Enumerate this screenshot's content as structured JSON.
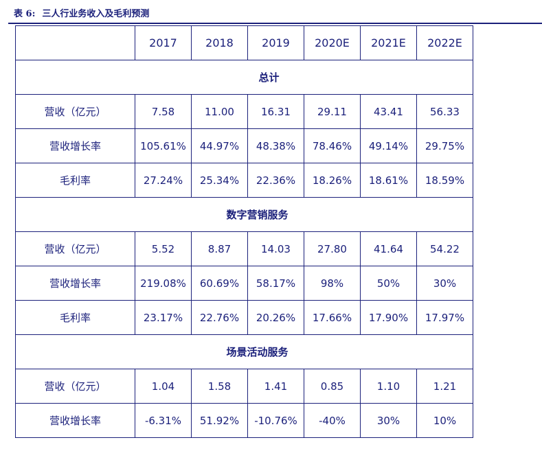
{
  "caption": {
    "label": "表 6:",
    "title": "三人行业务收入及毛利预测"
  },
  "table": {
    "corner": "",
    "years": [
      "2017",
      "2018",
      "2019",
      "2020E",
      "2021E",
      "2022E"
    ],
    "sections": [
      {
        "name": "总计",
        "rows": [
          {
            "label": "营收（亿元）",
            "values": [
              "7.58",
              "11.00",
              "16.31",
              "29.11",
              "43.41",
              "56.33"
            ]
          },
          {
            "label": "营收增长率",
            "values": [
              "105.61%",
              "44.97%",
              "48.38%",
              "78.46%",
              "49.14%",
              "29.75%"
            ]
          },
          {
            "label": "毛利率",
            "values": [
              "27.24%",
              "25.34%",
              "22.36%",
              "18.26%",
              "18.61%",
              "18.59%"
            ]
          }
        ]
      },
      {
        "name": "数字营销服务",
        "rows": [
          {
            "label": "营收（亿元）",
            "values": [
              "5.52",
              "8.87",
              "14.03",
              "27.80",
              "41.64",
              "54.22"
            ]
          },
          {
            "label": "营收增长率",
            "values": [
              "219.08%",
              "60.69%",
              "58.17%",
              "98%",
              "50%",
              "30%"
            ]
          },
          {
            "label": "毛利率",
            "values": [
              "23.17%",
              "22.76%",
              "20.26%",
              "17.66%",
              "17.90%",
              "17.97%"
            ]
          }
        ]
      },
      {
        "name": "场景活动服务",
        "rows": [
          {
            "label": "营收（亿元）",
            "values": [
              "1.04",
              "1.58",
              "1.41",
              "0.85",
              "1.10",
              "1.21"
            ]
          },
          {
            "label": "营收增长率",
            "values": [
              "-6.31%",
              "51.92%",
              "-10.76%",
              "-40%",
              "30%",
              "10%"
            ]
          }
        ]
      }
    ]
  }
}
